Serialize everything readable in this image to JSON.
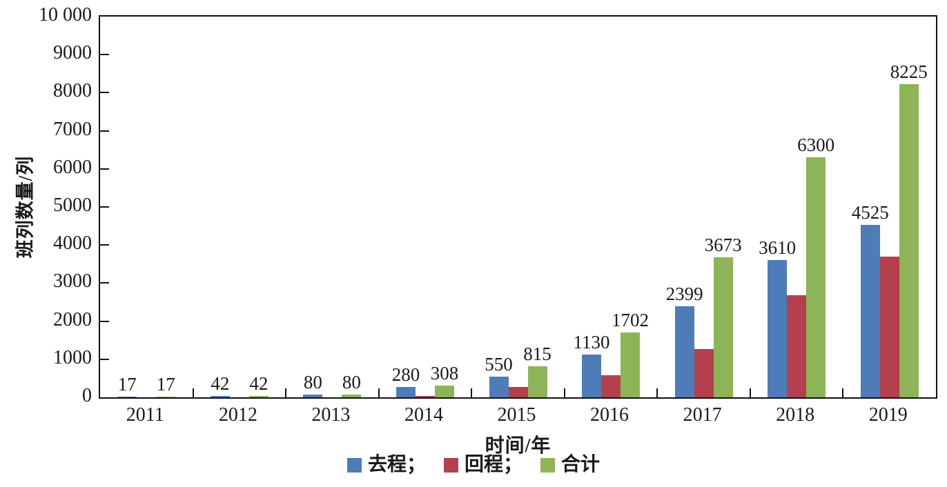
{
  "chart_data": {
    "type": "bar",
    "title": "",
    "xlabel": "时间/年",
    "ylabel": "班列数量/列",
    "categories": [
      "2011",
      "2012",
      "2013",
      "2014",
      "2015",
      "2016",
      "2017",
      "2018",
      "2019"
    ],
    "series": [
      {
        "key": "outbound",
        "name": "去程",
        "color": "#4e7cb9",
        "values": [
          17,
          42,
          80,
          280,
          550,
          1130,
          2399,
          3610,
          4525
        ],
        "labels": [
          "17",
          "42",
          "80",
          "280",
          "550",
          "1130",
          "2399",
          "3610",
          "4525"
        ]
      },
      {
        "key": "return",
        "name": "回程",
        "color": "#b43f4d",
        "values": [
          0,
          0,
          0,
          28,
          265,
          572,
          1274,
          2690,
          3700
        ],
        "labels": [
          "",
          "",
          "",
          "",
          "",
          "",
          "",
          "",
          ""
        ]
      },
      {
        "key": "total",
        "name": "合计",
        "color": "#8db457",
        "values": [
          17,
          42,
          80,
          308,
          815,
          1702,
          3673,
          6300,
          8225
        ],
        "labels": [
          "17",
          "42",
          "80",
          "308",
          "815",
          "1702",
          "3673",
          "6300",
          "8225"
        ]
      }
    ],
    "ylim": [
      0,
      10000
    ],
    "yticks": [
      {
        "value": 0,
        "label": "0"
      },
      {
        "value": 1000,
        "label": "1000"
      },
      {
        "value": 2000,
        "label": "2000"
      },
      {
        "value": 3000,
        "label": "3000"
      },
      {
        "value": 4000,
        "label": "4000"
      },
      {
        "value": 5000,
        "label": "5000"
      },
      {
        "value": 6000,
        "label": "6000"
      },
      {
        "value": 7000,
        "label": "7000"
      },
      {
        "value": 8000,
        "label": "8000"
      },
      {
        "value": 9000,
        "label": "9000"
      },
      {
        "value": 10000,
        "label": "10 000"
      }
    ],
    "grid": false,
    "legend_position": "bottom"
  },
  "legend": {
    "items": [
      {
        "label": "去程；",
        "color": "#4e7cb9"
      },
      {
        "label": "回程；",
        "color": "#b43f4d"
      },
      {
        "label": "合计",
        "color": "#8db457"
      }
    ]
  }
}
